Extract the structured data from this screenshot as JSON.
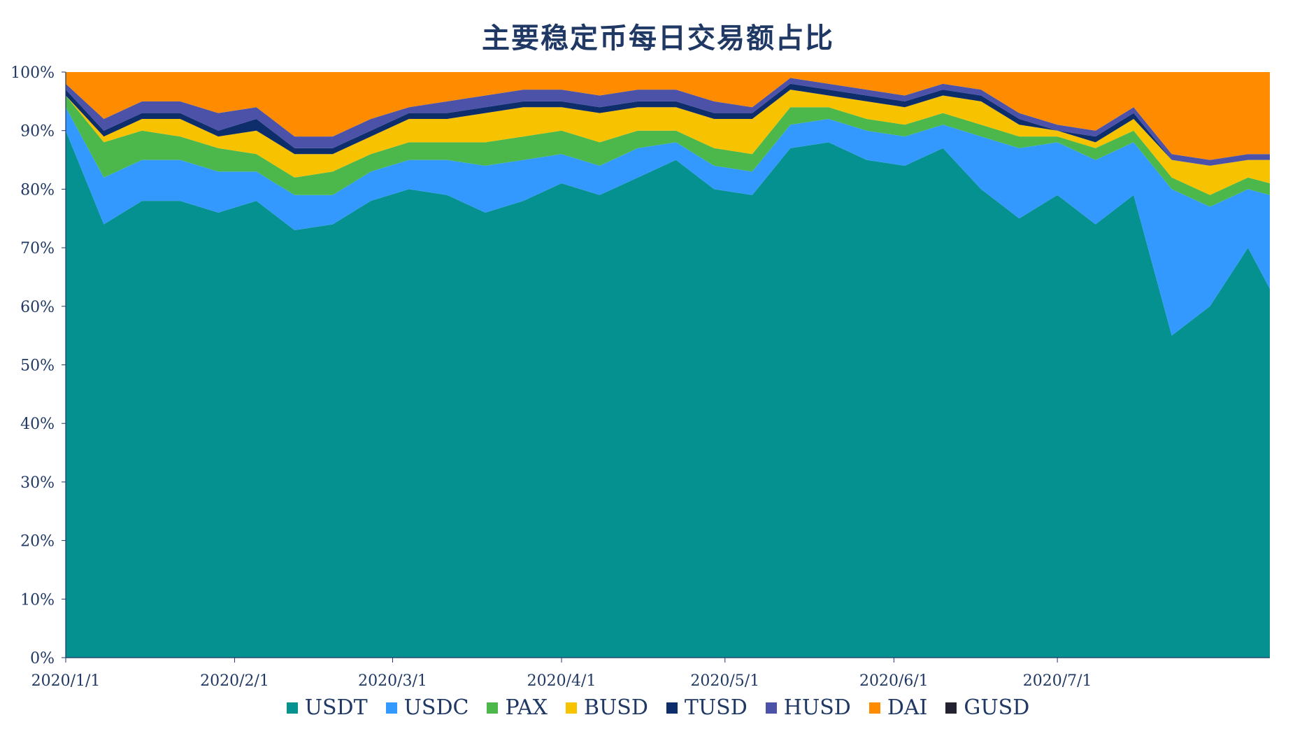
{
  "chart_data": {
    "type": "area",
    "stacked": "percent",
    "title": "主要稳定币每日交易额占比",
    "xlabel": "",
    "ylabel": "",
    "ylim": [
      0,
      100
    ],
    "y_tick_labels": [
      "0%",
      "10%",
      "20%",
      "30%",
      "40%",
      "50%",
      "60%",
      "70%",
      "80%",
      "90%",
      "100%"
    ],
    "x_range": [
      "2020-01-01",
      "2020-08-09"
    ],
    "x_tick_labels": [
      "2020/1/1",
      "2020/2/1",
      "2020/3/1",
      "2020/4/1",
      "2020/5/1",
      "2020/6/1",
      "2020/7/1"
    ],
    "x_tick_dates": [
      "2020-01-01",
      "2020-02-01",
      "2020-03-01",
      "2020-04-01",
      "2020-05-01",
      "2020-06-01",
      "2020-07-01"
    ],
    "grid": false,
    "legend_position": "bottom",
    "x": [
      "2020-01-01",
      "2020-01-08",
      "2020-01-15",
      "2020-01-22",
      "2020-01-29",
      "2020-02-05",
      "2020-02-12",
      "2020-02-19",
      "2020-02-26",
      "2020-03-04",
      "2020-03-11",
      "2020-03-18",
      "2020-03-25",
      "2020-04-01",
      "2020-04-08",
      "2020-04-15",
      "2020-04-22",
      "2020-04-29",
      "2020-05-06",
      "2020-05-13",
      "2020-05-20",
      "2020-05-27",
      "2020-06-03",
      "2020-06-10",
      "2020-06-17",
      "2020-06-24",
      "2020-07-01",
      "2020-07-08",
      "2020-07-15",
      "2020-07-22",
      "2020-07-29",
      "2020-08-05",
      "2020-08-09"
    ],
    "series": [
      {
        "name": "USDT",
        "color": "#05918f",
        "values": [
          90,
          74,
          78,
          78,
          76,
          78,
          73,
          74,
          78,
          80,
          79,
          76,
          78,
          81,
          79,
          82,
          85,
          80,
          79,
          87,
          88,
          85,
          84,
          87,
          80,
          75,
          79,
          74,
          79,
          55,
          60,
          70,
          63
        ]
      },
      {
        "name": "USDC",
        "color": "#3399ff",
        "values": [
          4,
          8,
          7,
          7,
          7,
          5,
          6,
          5,
          5,
          5,
          6,
          8,
          7,
          5,
          5,
          5,
          3,
          4,
          4,
          4,
          4,
          5,
          5,
          4,
          9,
          12,
          9,
          11,
          9,
          25,
          17,
          10,
          16
        ]
      },
      {
        "name": "PAX",
        "color": "#4cb84c",
        "values": [
          2,
          6,
          5,
          4,
          4,
          3,
          3,
          4,
          3,
          3,
          3,
          4,
          4,
          4,
          4,
          3,
          2,
          3,
          3,
          3,
          2,
          2,
          2,
          2,
          2,
          2,
          1,
          2,
          2,
          2,
          2,
          2,
          2
        ]
      },
      {
        "name": "BUSD",
        "color": "#f7c200",
        "values": [
          0,
          1,
          2,
          3,
          2,
          4,
          4,
          3,
          3,
          4,
          4,
          5,
          5,
          4,
          5,
          4,
          4,
          5,
          6,
          3,
          2,
          3,
          3,
          3,
          4,
          2,
          1,
          1,
          2,
          3,
          5,
          3,
          4
        ]
      },
      {
        "name": "TUSD",
        "color": "#0d2d6b",
        "values": [
          1,
          1,
          1,
          1,
          1,
          2,
          1,
          1,
          1,
          1,
          1,
          1,
          1,
          1,
          1,
          1,
          1,
          1,
          1,
          1,
          1,
          1,
          1,
          1,
          1,
          1,
          0,
          1,
          1,
          0,
          0,
          0,
          0
        ]
      },
      {
        "name": "HUSD",
        "color": "#4b52a8",
        "values": [
          1,
          2,
          2,
          2,
          3,
          2,
          2,
          2,
          2,
          1,
          2,
          2,
          2,
          2,
          2,
          2,
          2,
          2,
          1,
          1,
          1,
          1,
          1,
          1,
          1,
          1,
          1,
          1,
          1,
          1,
          1,
          1,
          1
        ]
      },
      {
        "name": "DAI",
        "color": "#ff8c00",
        "values": [
          2,
          8,
          5,
          5,
          7,
          6,
          11,
          11,
          8,
          6,
          5,
          4,
          3,
          3,
          4,
          3,
          3,
          5,
          6,
          1,
          2,
          3,
          4,
          2,
          3,
          7,
          9,
          10,
          6,
          14,
          15,
          14,
          14
        ]
      },
      {
        "name": "GUSD",
        "color": "#222230",
        "values": [
          0,
          0,
          0,
          0,
          0,
          0,
          0,
          0,
          0,
          0,
          0,
          0,
          0,
          0,
          0,
          0,
          0,
          0,
          0,
          0,
          0,
          0,
          0,
          0,
          0,
          0,
          0,
          0,
          0,
          0,
          0,
          0,
          0
        ]
      }
    ]
  }
}
